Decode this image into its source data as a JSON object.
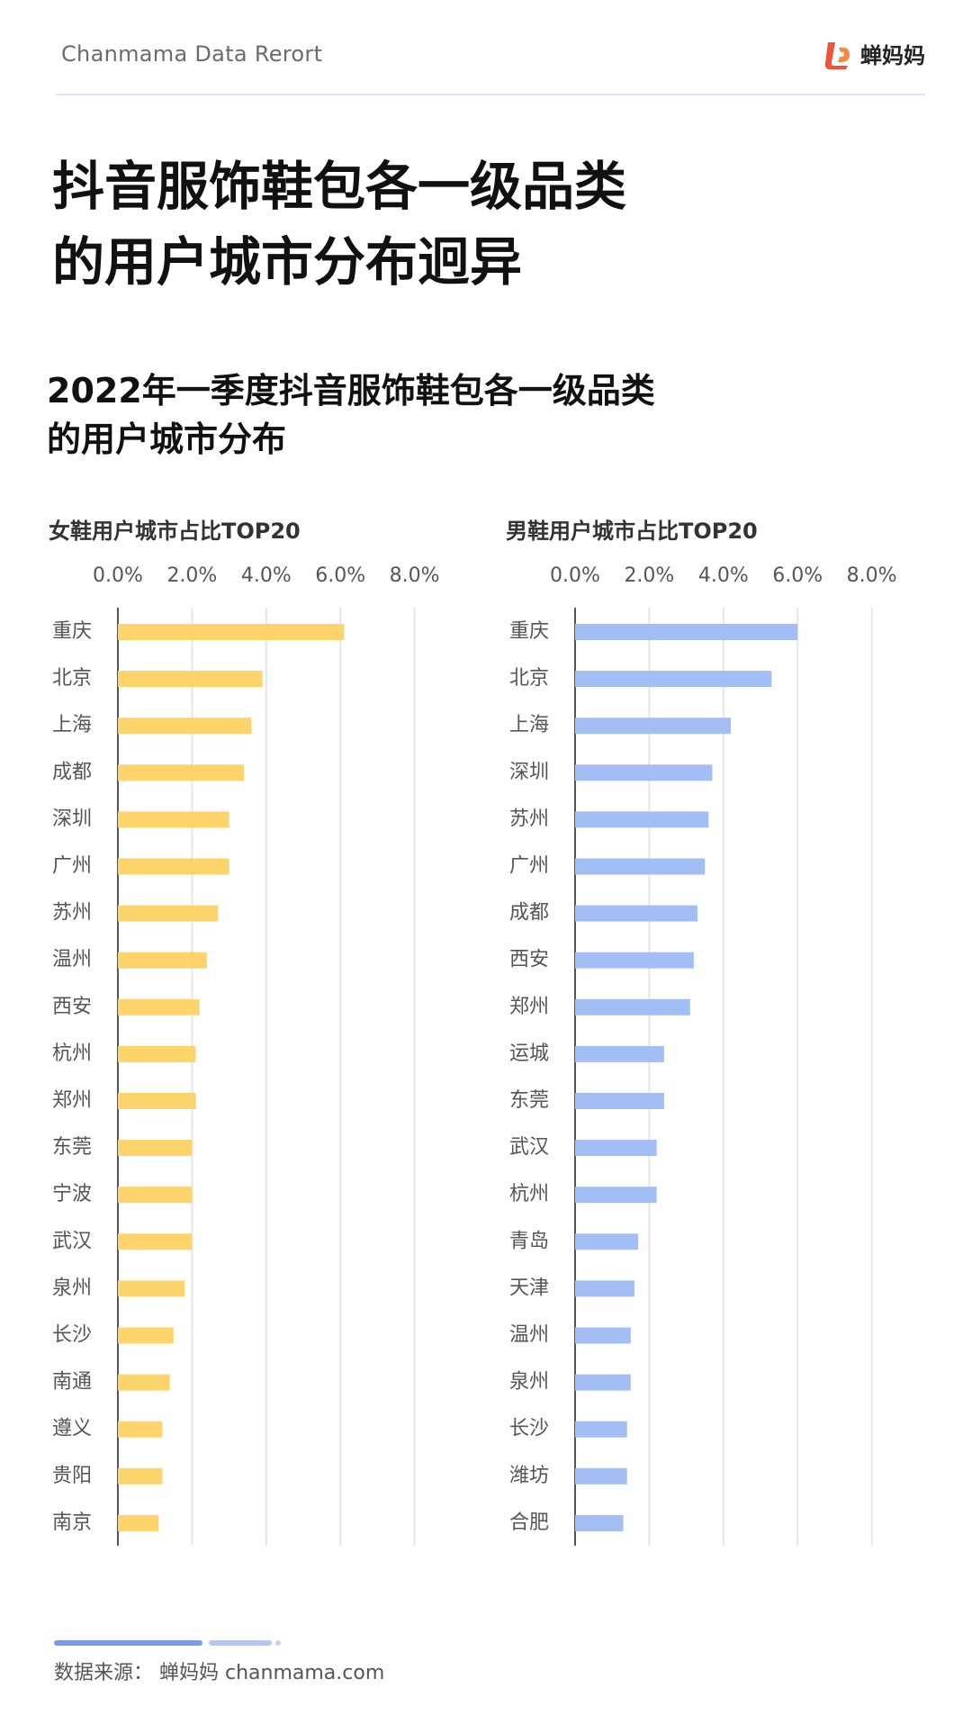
{
  "header": {
    "brand": "Chanmama Data Rerort",
    "logo_text": "蝉妈妈",
    "colors": {
      "logo_red": "#f0523a",
      "logo_orange": "#f58a3c"
    }
  },
  "title": {
    "line1": "抖音服饰鞋包各一级品类",
    "line2": "的用户城市分布迥异"
  },
  "subtitle": {
    "line1": "2022年一季度抖音服饰鞋包各一级品类",
    "line2": "的用户城市分布"
  },
  "chart_data": [
    {
      "type": "bar",
      "orientation": "horizontal",
      "title": "女鞋用户城市占比TOP20",
      "color": "#fcd46b",
      "xlim": [
        0,
        8
      ],
      "ticks": [
        "0.0%",
        "2.0%",
        "4.0%",
        "6.0%",
        "8.0%"
      ],
      "tick_values": [
        0,
        2,
        4,
        6,
        8
      ],
      "categories": [
        "重庆",
        "北京",
        "上海",
        "成都",
        "深圳",
        "广州",
        "苏州",
        "温州",
        "西安",
        "杭州",
        "郑州",
        "东莞",
        "宁波",
        "武汉",
        "泉州",
        "长沙",
        "南通",
        "遵义",
        "贵阳",
        "南京"
      ],
      "values": [
        6.1,
        3.9,
        3.6,
        3.4,
        3.0,
        3.0,
        2.7,
        2.4,
        2.2,
        2.1,
        2.1,
        2.0,
        2.0,
        2.0,
        1.8,
        1.5,
        1.4,
        1.2,
        1.2,
        1.1
      ]
    },
    {
      "type": "bar",
      "orientation": "horizontal",
      "title": "男鞋用户城市占比TOP20",
      "color": "#a3bdf5",
      "xlim": [
        0,
        8
      ],
      "ticks": [
        "0.0%",
        "2.0%",
        "4.0%",
        "6.0%",
        "8.0%"
      ],
      "tick_values": [
        0,
        2,
        4,
        6,
        8
      ],
      "categories": [
        "重庆",
        "北京",
        "上海",
        "深圳",
        "苏州",
        "广州",
        "成都",
        "西安",
        "郑州",
        "运城",
        "东莞",
        "武汉",
        "杭州",
        "青岛",
        "天津",
        "温州",
        "泉州",
        "长沙",
        "潍坊",
        "合肥"
      ],
      "values": [
        6.0,
        5.3,
        4.2,
        3.7,
        3.6,
        3.5,
        3.3,
        3.2,
        3.1,
        2.4,
        2.4,
        2.2,
        2.2,
        1.7,
        1.6,
        1.5,
        1.5,
        1.4,
        1.4,
        1.3
      ]
    }
  ],
  "footer": {
    "source": "数据来源：  蝉妈妈  chanmama.com"
  }
}
